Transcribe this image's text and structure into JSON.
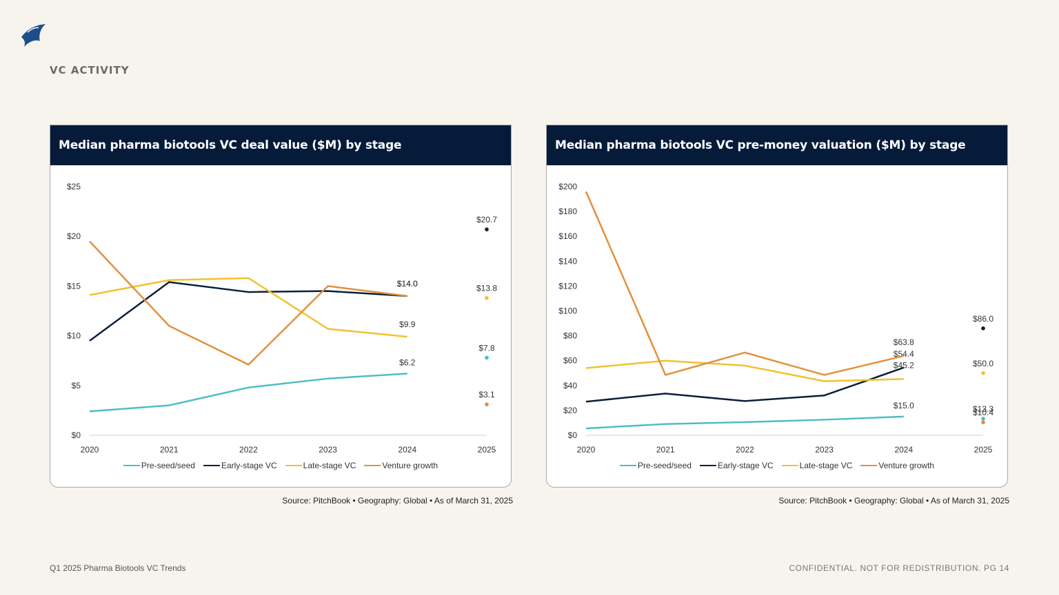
{
  "section_title": "VC ACTIVITY",
  "logo": {
    "icon": "sail-logo-icon",
    "color": "#1d4e89"
  },
  "colors": {
    "Pre-seed/seed": "#4bbfc4",
    "Early-stage VC": "#0b1e3a",
    "Late-stage VC": "#f2c12e",
    "Venture growth": "#e38f3c",
    "header_bg": "#061b3a",
    "page_bg": "#f7f4ee"
  },
  "chart_data": [
    {
      "type": "line",
      "title": "Median pharma biotools VC deal value ($M) by stage",
      "source": "Source: PitchBook  •  Geography: Global  •  As of March 31, 2025",
      "x": [
        "2020",
        "2021",
        "2022",
        "2023",
        "2024",
        "2025"
      ],
      "y_ticks": [
        "$0",
        "$5",
        "$10",
        "$15",
        "$20",
        "$25"
      ],
      "ylim": [
        0,
        25
      ],
      "xlabel": "",
      "ylabel": "",
      "grid": false,
      "legend_position": "bottom",
      "series": [
        {
          "name": "Pre-seed/seed",
          "values": [
            2.4,
            3.0,
            4.8,
            5.7,
            6.2,
            7.8
          ],
          "last_label": "$6.2",
          "point_label": "$7.8"
        },
        {
          "name": "Early-stage VC",
          "values": [
            9.5,
            15.4,
            14.4,
            14.5,
            14.0,
            20.7
          ],
          "last_label": "$14.0",
          "point_label": "$20.7"
        },
        {
          "name": "Late-stage VC",
          "values": [
            14.1,
            15.6,
            15.8,
            10.7,
            9.9,
            13.8
          ],
          "last_label": "$9.9",
          "point_label": "$13.8"
        },
        {
          "name": "Venture growth",
          "values": [
            19.5,
            11.0,
            7.1,
            15.0,
            14.0,
            3.1
          ],
          "last_label": "$14.0",
          "point_label": "$3.1"
        }
      ]
    },
    {
      "type": "line",
      "title": "Median pharma biotools VC pre-money valuation ($M) by stage",
      "source": "Source: PitchBook  •  Geography: Global  •  As of March 31, 2025",
      "x": [
        "2020",
        "2021",
        "2022",
        "2023",
        "2024",
        "2025"
      ],
      "y_ticks": [
        "$0",
        "$20",
        "$40",
        "$60",
        "$80",
        "$100",
        "$120",
        "$140",
        "$160",
        "$180",
        "$200"
      ],
      "ylim": [
        0,
        200
      ],
      "xlabel": "",
      "ylabel": "",
      "grid": false,
      "legend_position": "bottom",
      "series": [
        {
          "name": "Pre-seed/seed",
          "values": [
            5.5,
            9.0,
            10.5,
            12.5,
            15.0,
            13.3
          ],
          "last_label": "$15.0",
          "point_label": "$13.3"
        },
        {
          "name": "Early-stage VC",
          "values": [
            27.0,
            33.5,
            27.5,
            32.0,
            54.4,
            86.0
          ],
          "last_label": "$54.4",
          "point_label": "$86.0"
        },
        {
          "name": "Late-stage VC",
          "values": [
            54.0,
            60.0,
            56.0,
            43.5,
            45.2,
            50.0
          ],
          "last_label": "$45.2",
          "point_label": "$50.0"
        },
        {
          "name": "Venture growth",
          "values": [
            196.0,
            48.5,
            66.5,
            48.5,
            63.8,
            10.4
          ],
          "last_label": "$63.8",
          "point_label": "$10.4"
        }
      ]
    }
  ],
  "footer": {
    "left": "Q1 2025 Pharma Biotools VC Trends",
    "right": "CONFIDENTIAL. NOT FOR REDISTRIBUTION.  PG 14"
  }
}
